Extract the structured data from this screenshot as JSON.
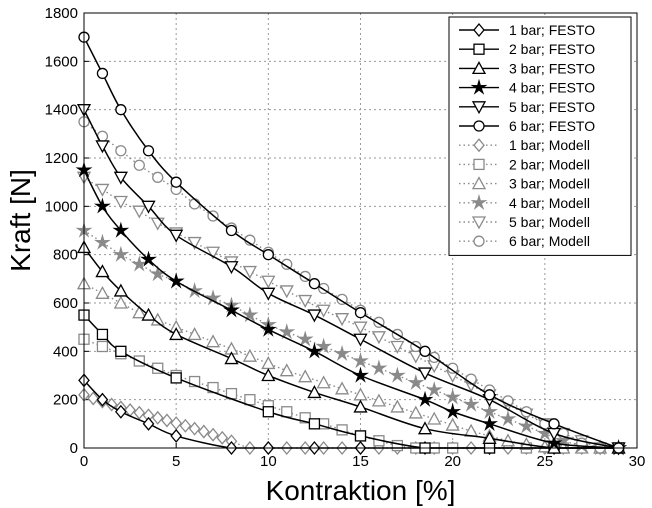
{
  "chart_data": {
    "type": "line",
    "xlabel": "Kontraktion [%]",
    "ylabel": "Kraft [N]",
    "xlim": [
      0,
      30
    ],
    "ylim": [
      0,
      1800
    ],
    "xticks": [
      0,
      5,
      10,
      15,
      20,
      25,
      30
    ],
    "yticks": [
      0,
      200,
      400,
      600,
      800,
      1000,
      1200,
      1400,
      1600,
      1800
    ],
    "grid": true,
    "legend_position": "top-right",
    "series": [
      {
        "name": "1 bar; FESTO",
        "marker": "diamond",
        "style": "solid",
        "color": "#000000",
        "x": [
          0,
          1,
          2,
          3.5,
          5,
          8,
          10,
          12.5,
          15,
          18.5,
          22,
          25.5,
          29
        ],
        "y": [
          280,
          200,
          150,
          100,
          50,
          0,
          0,
          0,
          0,
          0,
          0,
          0,
          0
        ]
      },
      {
        "name": "2 bar; FESTO",
        "marker": "square",
        "style": "solid",
        "color": "#000000",
        "x": [
          0,
          1,
          2,
          5,
          10,
          12.5,
          15,
          18.5,
          22,
          25.5,
          29
        ],
        "y": [
          550,
          470,
          400,
          290,
          150,
          100,
          50,
          0,
          0,
          0,
          0
        ]
      },
      {
        "name": "3 bar; FESTO",
        "marker": "triangle-up",
        "style": "solid",
        "color": "#000000",
        "x": [
          0,
          1,
          2,
          3.5,
          5,
          8,
          10,
          12.5,
          15,
          18.5,
          22,
          25.5,
          29
        ],
        "y": [
          830,
          730,
          650,
          550,
          470,
          370,
          300,
          230,
          170,
          80,
          40,
          0,
          0
        ]
      },
      {
        "name": "4 bar; FESTO",
        "marker": "star",
        "style": "solid",
        "color": "#000000",
        "x": [
          0,
          1,
          2,
          3.5,
          5,
          8,
          10,
          12.5,
          15,
          18.5,
          20,
          22,
          25.5,
          29
        ],
        "y": [
          1150,
          1000,
          900,
          780,
          690,
          570,
          490,
          400,
          300,
          200,
          150,
          100,
          20,
          0
        ]
      },
      {
        "name": "5 bar; FESTO",
        "marker": "triangle-down",
        "style": "solid",
        "color": "#000000",
        "x": [
          0,
          1,
          2,
          3.5,
          5,
          8,
          10,
          12.5,
          15,
          18.5,
          22,
          25.5,
          29
        ],
        "y": [
          1400,
          1250,
          1120,
          1000,
          880,
          750,
          640,
          550,
          450,
          310,
          200,
          60,
          0
        ]
      },
      {
        "name": "6 bar; FESTO",
        "marker": "circle",
        "style": "solid",
        "color": "#000000",
        "x": [
          0,
          1,
          2,
          3.5,
          5,
          8,
          10,
          12.5,
          15,
          18.5,
          22,
          25.5,
          29
        ],
        "y": [
          1700,
          1550,
          1400,
          1230,
          1100,
          900,
          800,
          680,
          560,
          400,
          220,
          100,
          0
        ]
      },
      {
        "name": "1 bar; Modell",
        "marker": "diamond",
        "style": "dotted",
        "color": "#8a8a8a",
        "x": [
          0,
          0.5,
          1,
          1.5,
          2,
          2.5,
          3,
          3.5,
          4,
          4.5,
          5,
          5.5,
          6,
          6.5,
          7,
          7.5,
          8,
          9,
          10,
          11,
          12,
          13,
          14,
          15,
          16,
          17,
          18,
          19,
          20,
          21,
          22,
          23,
          24,
          25,
          26,
          27,
          28,
          29
        ],
        "y": [
          220,
          205,
          192,
          180,
          168,
          157,
          146,
          135,
          125,
          114,
          103,
          92,
          80,
          68,
          55,
          42,
          28,
          0,
          0,
          0,
          0,
          0,
          0,
          0,
          0,
          0,
          0,
          0,
          0,
          0,
          0,
          0,
          0,
          0,
          0,
          0,
          0,
          0
        ]
      },
      {
        "name": "2 bar; Modell",
        "marker": "square",
        "style": "dotted",
        "color": "#8a8a8a",
        "x": [
          0,
          1,
          2,
          3,
          4,
          5,
          6,
          7,
          8,
          9,
          10,
          11,
          12,
          13,
          14,
          15,
          16,
          17,
          18,
          19,
          20,
          22,
          24,
          26,
          28,
          29
        ],
        "y": [
          450,
          420,
          390,
          360,
          330,
          300,
          275,
          250,
          225,
          200,
          175,
          150,
          125,
          100,
          75,
          50,
          30,
          10,
          0,
          0,
          0,
          0,
          0,
          0,
          0,
          0
        ]
      },
      {
        "name": "3 bar; Modell",
        "marker": "triangle-up",
        "style": "dotted",
        "color": "#8a8a8a",
        "x": [
          0,
          1,
          2,
          3,
          4,
          5,
          6,
          7,
          8,
          9,
          10,
          11,
          12,
          13,
          14,
          15,
          16,
          17,
          18,
          19,
          20,
          21,
          22,
          23,
          24,
          25,
          26,
          27,
          28,
          29
        ],
        "y": [
          680,
          640,
          600,
          560,
          530,
          500,
          470,
          440,
          410,
          380,
          350,
          320,
          295,
          270,
          245,
          220,
          195,
          170,
          145,
          120,
          95,
          70,
          50,
          30,
          15,
          5,
          0,
          0,
          0,
          0
        ]
      },
      {
        "name": "4 bar; Modell",
        "marker": "star",
        "style": "dotted",
        "color": "#8a8a8a",
        "x": [
          0,
          1,
          2,
          3,
          4,
          5,
          6,
          7,
          8,
          9,
          10,
          11,
          12,
          13,
          14,
          15,
          16,
          17,
          18,
          19,
          20,
          21,
          22,
          23,
          24,
          25,
          26,
          27,
          28,
          29
        ],
        "y": [
          900,
          850,
          800,
          760,
          720,
          690,
          650,
          620,
          590,
          550,
          510,
          480,
          450,
          420,
          390,
          360,
          330,
          300,
          270,
          240,
          210,
          180,
          150,
          120,
          90,
          60,
          30,
          10,
          0,
          0
        ]
      },
      {
        "name": "5 bar; Modell",
        "marker": "triangle-down",
        "style": "dotted",
        "color": "#8a8a8a",
        "x": [
          0,
          1,
          2,
          3,
          4,
          5,
          6,
          7,
          8,
          9,
          10,
          11,
          12,
          13,
          14,
          15,
          16,
          17,
          18,
          19,
          20,
          21,
          22,
          23,
          24,
          25,
          26,
          27,
          28,
          29
        ],
        "y": [
          1120,
          1070,
          1020,
          980,
          930,
          890,
          850,
          810,
          770,
          730,
          690,
          650,
          610,
          570,
          535,
          500,
          460,
          420,
          380,
          340,
          300,
          260,
          220,
          180,
          140,
          100,
          60,
          30,
          0,
          0
        ]
      },
      {
        "name": "6 bar; Modell",
        "marker": "circle",
        "style": "dotted",
        "color": "#8a8a8a",
        "x": [
          0,
          1,
          2,
          3,
          4,
          5,
          6,
          7,
          8,
          9,
          10,
          11,
          12,
          13,
          14,
          15,
          16,
          17,
          18,
          19,
          20,
          21,
          22,
          23,
          24,
          25,
          26,
          27,
          28,
          29
        ],
        "y": [
          1350,
          1290,
          1230,
          1170,
          1120,
          1070,
          1010,
          960,
          910,
          860,
          810,
          760,
          710,
          660,
          615,
          570,
          520,
          470,
          420,
          375,
          330,
          285,
          240,
          195,
          150,
          100,
          60,
          20,
          0,
          0
        ]
      }
    ]
  }
}
